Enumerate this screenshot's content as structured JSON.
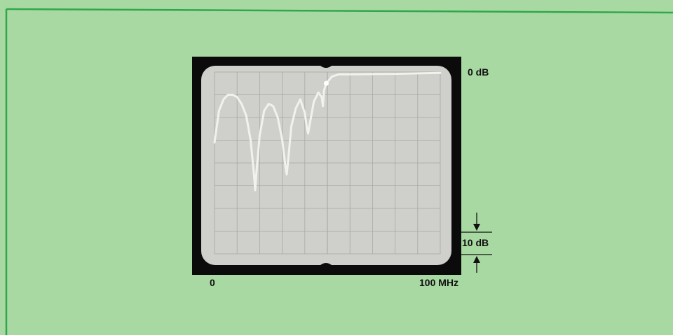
{
  "labels": {
    "top_level": "0 dB",
    "scale_marker": "10 dB",
    "x_start": "0",
    "x_end": "100 MHz"
  },
  "colors": {
    "page_background": "#a9d9a3",
    "border_line": "#2fa84a",
    "screen_background": "#cfd0cc",
    "grid": "#a7a9a5",
    "trace": "#f1f1ee",
    "bezel": "#0b0b0b"
  },
  "chart_data": {
    "type": "line",
    "title": "",
    "xlabel": "",
    "ylabel": "",
    "xlim": [
      0,
      100
    ],
    "ylim": [
      -80,
      0
    ],
    "x_unit": "MHz",
    "y_unit": "dB",
    "grid": true,
    "grid_divisions": {
      "x": 10,
      "y": 8
    },
    "vertical_scale_db_per_div": 10,
    "series": [
      {
        "name": "",
        "x": [
          0,
          2,
          4,
          6,
          8,
          10,
          12,
          14,
          16,
          17.5,
          18,
          18.5,
          20,
          22,
          24,
          26,
          28,
          30,
          31.5,
          32,
          32.5,
          34,
          36,
          38,
          40,
          41,
          41.5,
          42,
          44,
          46,
          47.5,
          48,
          48.5,
          49.5,
          52,
          55,
          60,
          70,
          80,
          90,
          100
        ],
        "y": [
          -31,
          -17,
          -12,
          -10,
          -10,
          -11,
          -14,
          -19,
          -30,
          -45,
          -52,
          -45,
          -28,
          -17,
          -14,
          -15,
          -20,
          -30,
          -42,
          -45,
          -40,
          -24,
          -16,
          -12,
          -18,
          -25,
          -27,
          -24,
          -13,
          -9,
          -11,
          -15,
          -8,
          -5,
          -2,
          -1,
          -1,
          -0.9,
          -0.8,
          -0.6,
          -0.4
        ]
      }
    ]
  }
}
